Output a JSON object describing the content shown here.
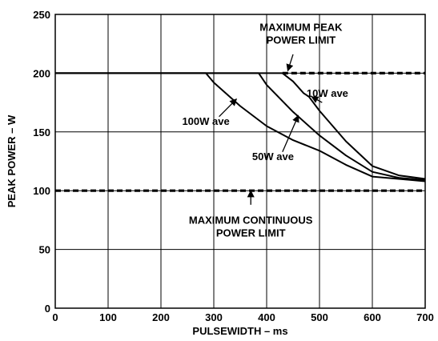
{
  "chart_data": {
    "type": "line",
    "xlabel": "PULSEWIDTH – ms",
    "ylabel": "PEAK POWER – W",
    "xlim": [
      0,
      700
    ],
    "ylim": [
      0,
      250
    ],
    "xticks": [
      0,
      100,
      200,
      300,
      400,
      500,
      600,
      700
    ],
    "yticks": [
      0,
      50,
      100,
      150,
      200,
      250
    ],
    "grid": true,
    "series": [
      {
        "name": "100W ave",
        "x": [
          0,
          285,
          300,
          350,
          400,
          450,
          500,
          550,
          600,
          650,
          700
        ],
        "y": [
          200,
          200,
          192,
          172,
          155,
          143,
          134,
          122,
          112,
          110,
          108
        ]
      },
      {
        "name": "50W ave",
        "x": [
          0,
          385,
          400,
          450,
          500,
          550,
          600,
          650,
          700
        ],
        "y": [
          200,
          200,
          190,
          167,
          147,
          130,
          116,
          111,
          109
        ]
      },
      {
        "name": "10W ave",
        "x": [
          0,
          430,
          450,
          470,
          480,
          500,
          550,
          600,
          650,
          700
        ],
        "y": [
          200,
          200,
          193,
          183,
          180,
          168,
          142,
          121,
          113,
          110
        ]
      }
    ],
    "limits": [
      {
        "name": "MAXIMUM PEAK POWER LIMIT",
        "y": 200,
        "x_from": 430,
        "x_to": 700
      },
      {
        "name": "MAXIMUM CONTINUOUS POWER LIMIT",
        "y": 100,
        "x_from": 0,
        "x_to": 700
      }
    ],
    "annotations": [
      {
        "lines": [
          "MAXIMUM PEAK",
          "POWER LIMIT"
        ],
        "series": "limit-peak",
        "text_pos": [
          465,
          236
        ],
        "arrow_from": [
          450,
          216
        ],
        "arrow_to": [
          440,
          202
        ]
      },
      {
        "lines": [
          "10W ave"
        ],
        "series": "10W ave",
        "text_pos": [
          515,
          180
        ],
        "arrow_from": [
          505,
          175
        ],
        "arrow_to": [
          485,
          180
        ]
      },
      {
        "lines": [
          "100W ave"
        ],
        "series": "100W ave",
        "text_pos": [
          285,
          156
        ],
        "arrow_from": [
          310,
          163
        ],
        "arrow_to": [
          343,
          178
        ]
      },
      {
        "lines": [
          "50W ave"
        ],
        "series": "50W ave",
        "text_pos": [
          412,
          126
        ],
        "arrow_from": [
          430,
          133
        ],
        "arrow_to": [
          460,
          164
        ]
      },
      {
        "lines": [
          "MAXIMUM CONTINUOUS",
          "POWER LIMIT"
        ],
        "series": "limit-continuous",
        "text_pos": [
          370,
          72
        ],
        "arrow_from": [
          370,
          88
        ],
        "arrow_to": [
          370,
          100
        ]
      }
    ]
  }
}
